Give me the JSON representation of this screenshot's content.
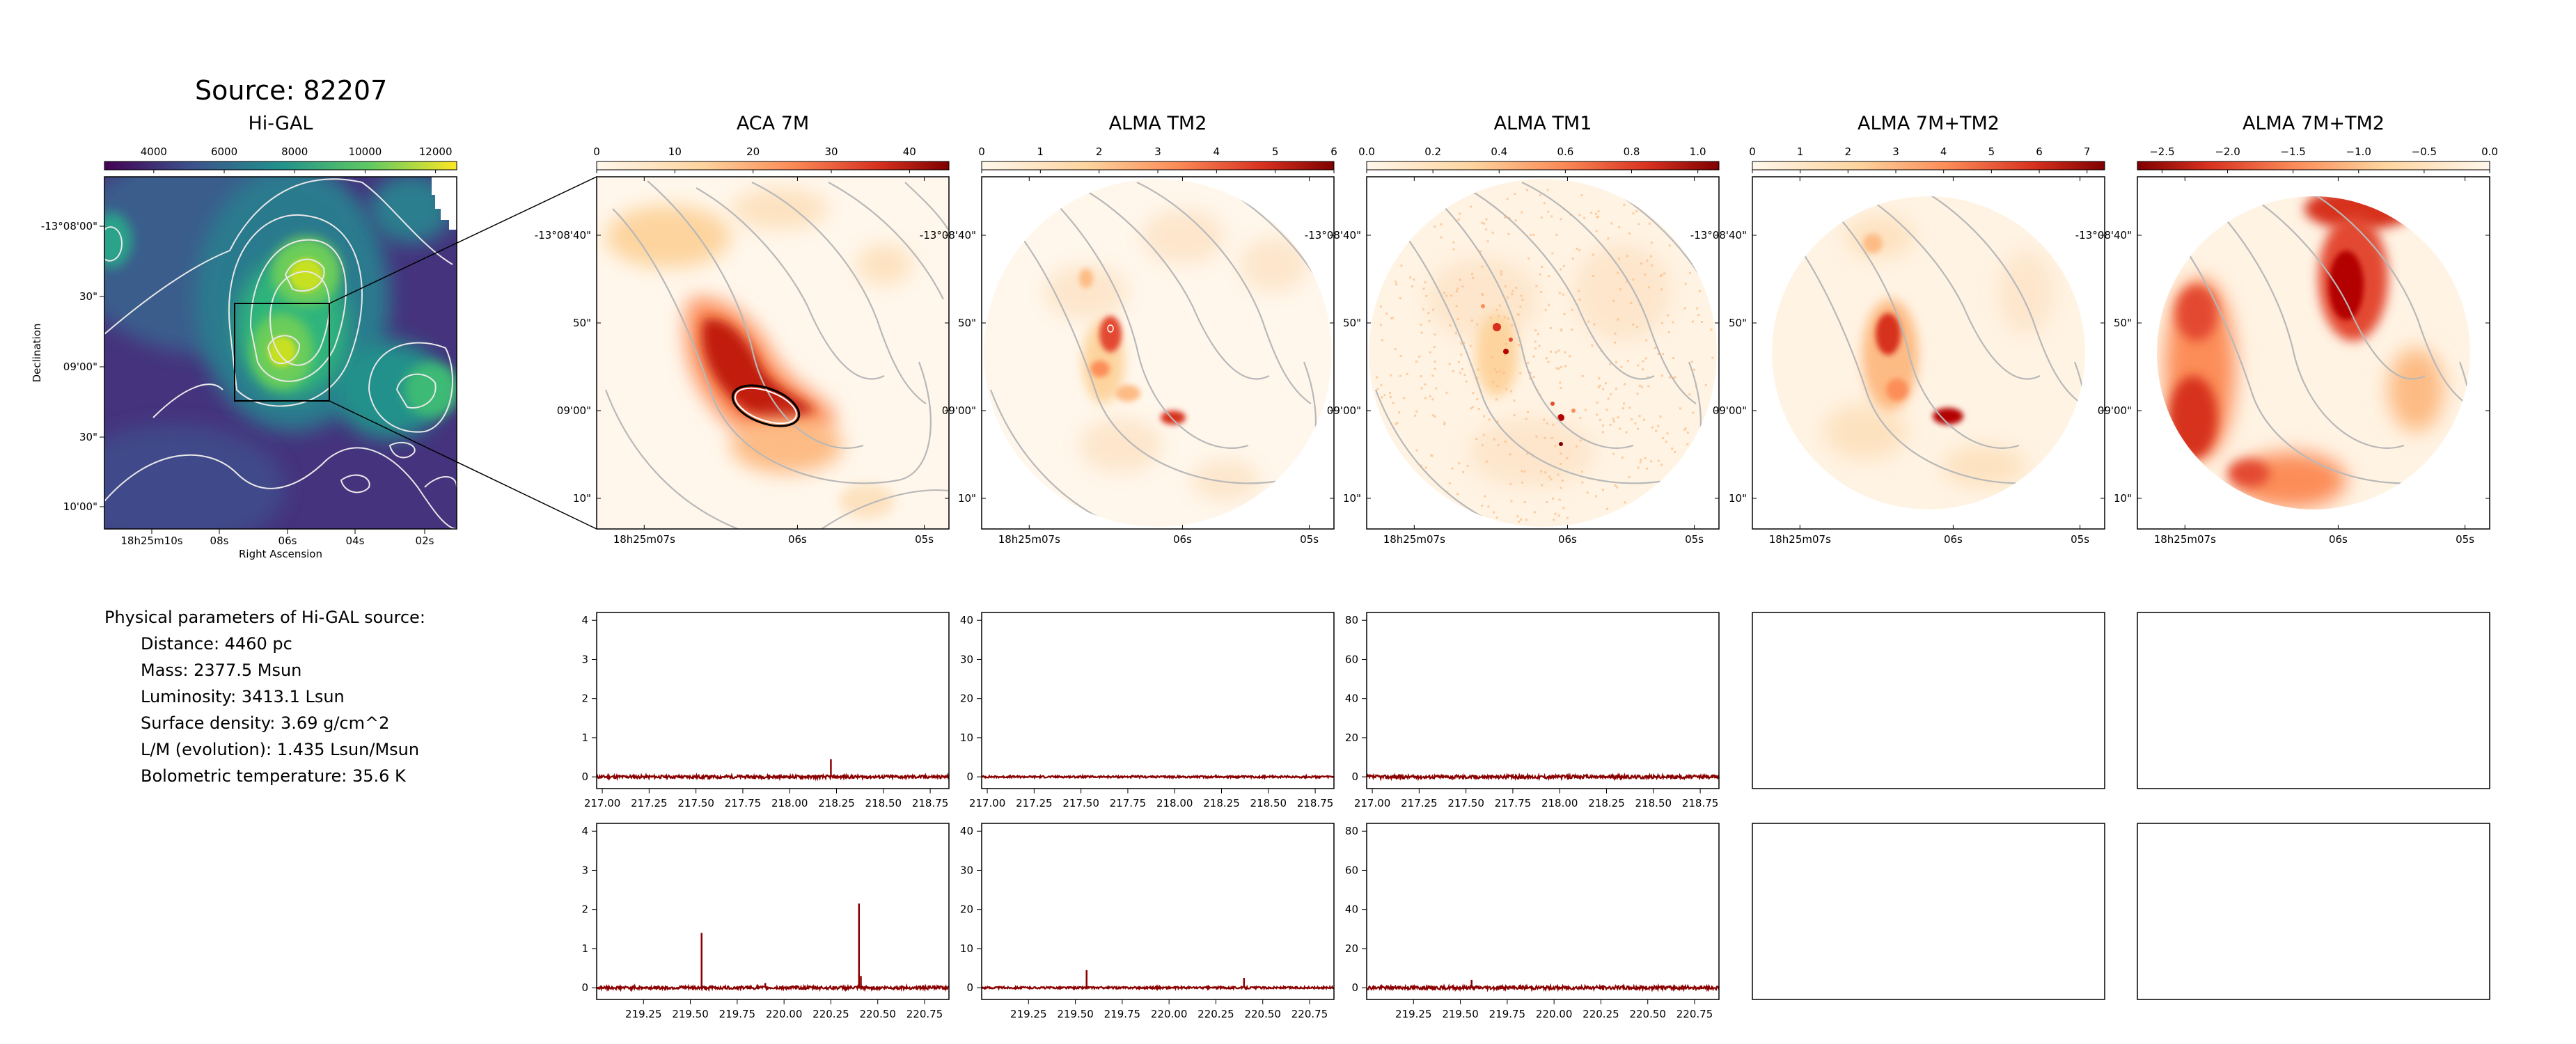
{
  "source_title": "Source: 82207",
  "panels": [
    {
      "title": "Hi-GAL",
      "colorbar_ticks": [
        "4000",
        "6000",
        "8000",
        "10000",
        "12000"
      ],
      "colormap": "viridis"
    },
    {
      "title": "ACA 7M",
      "colorbar_ticks": [
        "0",
        "10",
        "20",
        "30",
        "40"
      ],
      "colormap": "OrRd"
    },
    {
      "title": "ALMA TM2",
      "colorbar_ticks": [
        "0",
        "1",
        "2",
        "3",
        "4",
        "5",
        "6"
      ],
      "colormap": "OrRd"
    },
    {
      "title": "ALMA TM1",
      "colorbar_ticks": [
        "0.0",
        "0.2",
        "0.4",
        "0.6",
        "0.8",
        "1.0"
      ],
      "colormap": "OrRd"
    },
    {
      "title": "ALMA 7M+TM2",
      "colorbar_ticks": [
        "0",
        "1",
        "2",
        "3",
        "4",
        "5",
        "6",
        "7"
      ],
      "colormap": "OrRd"
    },
    {
      "title": "ALMA 7M+TM2",
      "colorbar_ticks": [
        "−2.5",
        "−2.0",
        "−1.5",
        "−1.0",
        "−0.5",
        "0.0"
      ],
      "colormap": "OrRd"
    }
  ],
  "higal_axes": {
    "ylabel": "Declination",
    "xlabel": "Right Ascension",
    "yticks": [
      "-13°08'00\"",
      "30\"",
      "09'00\"",
      "30\"",
      "10'00\""
    ],
    "xticks": [
      "18h25m10s",
      "08s",
      "06s",
      "04s",
      "02s"
    ]
  },
  "zoom_axes": {
    "yticks": [
      "-13°08'40\"",
      "50\"",
      "09'00\"",
      "10\""
    ],
    "xticks": [
      "18h25m07s",
      "06s",
      "05s"
    ]
  },
  "params": {
    "heading": "Physical parameters of Hi-GAL source:",
    "lines": [
      "Distance: 4460 pc",
      "Mass: 2377.5 Msun",
      "Luminosity: 3413.1 Lsun",
      "Surface density: 3.69 g/cm^2",
      "L/M (evolution): 1.435 Lsun/Msun",
      "Bolometric temperature: 35.6 K"
    ]
  },
  "colors": {
    "spectrum": "#8b0000",
    "frame": "#000000"
  },
  "chart_data": [
    {
      "type": "line",
      "title": "",
      "row": 1,
      "column": "ACA 7M",
      "xticks": [
        "217.00",
        "217.25",
        "217.50",
        "217.75",
        "218.00",
        "218.25",
        "218.50",
        "218.75"
      ],
      "xlim": [
        216.97,
        218.85
      ],
      "ylim": [
        -0.3,
        4.2
      ],
      "yticks": [
        "0",
        "1",
        "2",
        "3",
        "4"
      ],
      "noise": 0.04,
      "peaks": [
        {
          "x": 218.22,
          "y": 0.45
        }
      ]
    },
    {
      "type": "line",
      "title": "",
      "row": 1,
      "column": "ALMA TM2",
      "xticks": [
        "217.00",
        "217.25",
        "217.50",
        "217.75",
        "218.00",
        "218.25",
        "218.50",
        "218.75"
      ],
      "xlim": [
        216.97,
        218.85
      ],
      "ylim": [
        -3,
        42
      ],
      "yticks": [
        "0",
        "10",
        "20",
        "30",
        "40"
      ],
      "noise": 0.25,
      "peaks": [
        {
          "x": 218.22,
          "y": 0.6
        }
      ]
    },
    {
      "type": "line",
      "title": "",
      "row": 1,
      "column": "ALMA TM1",
      "xticks": [
        "217.00",
        "217.25",
        "217.50",
        "217.75",
        "218.00",
        "218.25",
        "218.50",
        "218.75"
      ],
      "xlim": [
        216.97,
        218.85
      ],
      "ylim": [
        -6,
        84
      ],
      "yticks": [
        "0",
        "20",
        "40",
        "60",
        "80"
      ],
      "noise": 0.9,
      "peaks": []
    },
    {
      "type": "line",
      "title": "",
      "row": 2,
      "column": "ACA 7M",
      "xticks": [
        "219.25",
        "219.50",
        "219.75",
        "220.00",
        "220.25",
        "220.50",
        "220.75"
      ],
      "xlim": [
        219.0,
        220.88
      ],
      "ylim": [
        -0.3,
        4.2
      ],
      "yticks": [
        "0",
        "1",
        "2",
        "3",
        "4"
      ],
      "noise": 0.04,
      "peaks": [
        {
          "x": 219.56,
          "y": 1.4
        },
        {
          "x": 219.9,
          "y": 0.12
        },
        {
          "x": 220.4,
          "y": 2.15
        },
        {
          "x": 220.41,
          "y": 0.3
        }
      ]
    },
    {
      "type": "line",
      "title": "",
      "row": 2,
      "column": "ALMA TM2",
      "xticks": [
        "219.25",
        "219.50",
        "219.75",
        "220.00",
        "220.25",
        "220.50",
        "220.75"
      ],
      "xlim": [
        219.0,
        220.88
      ],
      "ylim": [
        -3,
        42
      ],
      "yticks": [
        "0",
        "10",
        "20",
        "30",
        "40"
      ],
      "noise": 0.25,
      "peaks": [
        {
          "x": 219.56,
          "y": 4.5
        },
        {
          "x": 220.4,
          "y": 2.5
        }
      ]
    },
    {
      "type": "line",
      "title": "",
      "row": 2,
      "column": "ALMA TM1",
      "xticks": [
        "219.25",
        "219.50",
        "219.75",
        "220.00",
        "220.25",
        "220.50",
        "220.75"
      ],
      "xlim": [
        219.0,
        220.88
      ],
      "ylim": [
        -6,
        84
      ],
      "yticks": [
        "0",
        "20",
        "40",
        "60",
        "80"
      ],
      "noise": 0.9,
      "peaks": [
        {
          "x": 219.56,
          "y": 4.0
        }
      ]
    }
  ]
}
